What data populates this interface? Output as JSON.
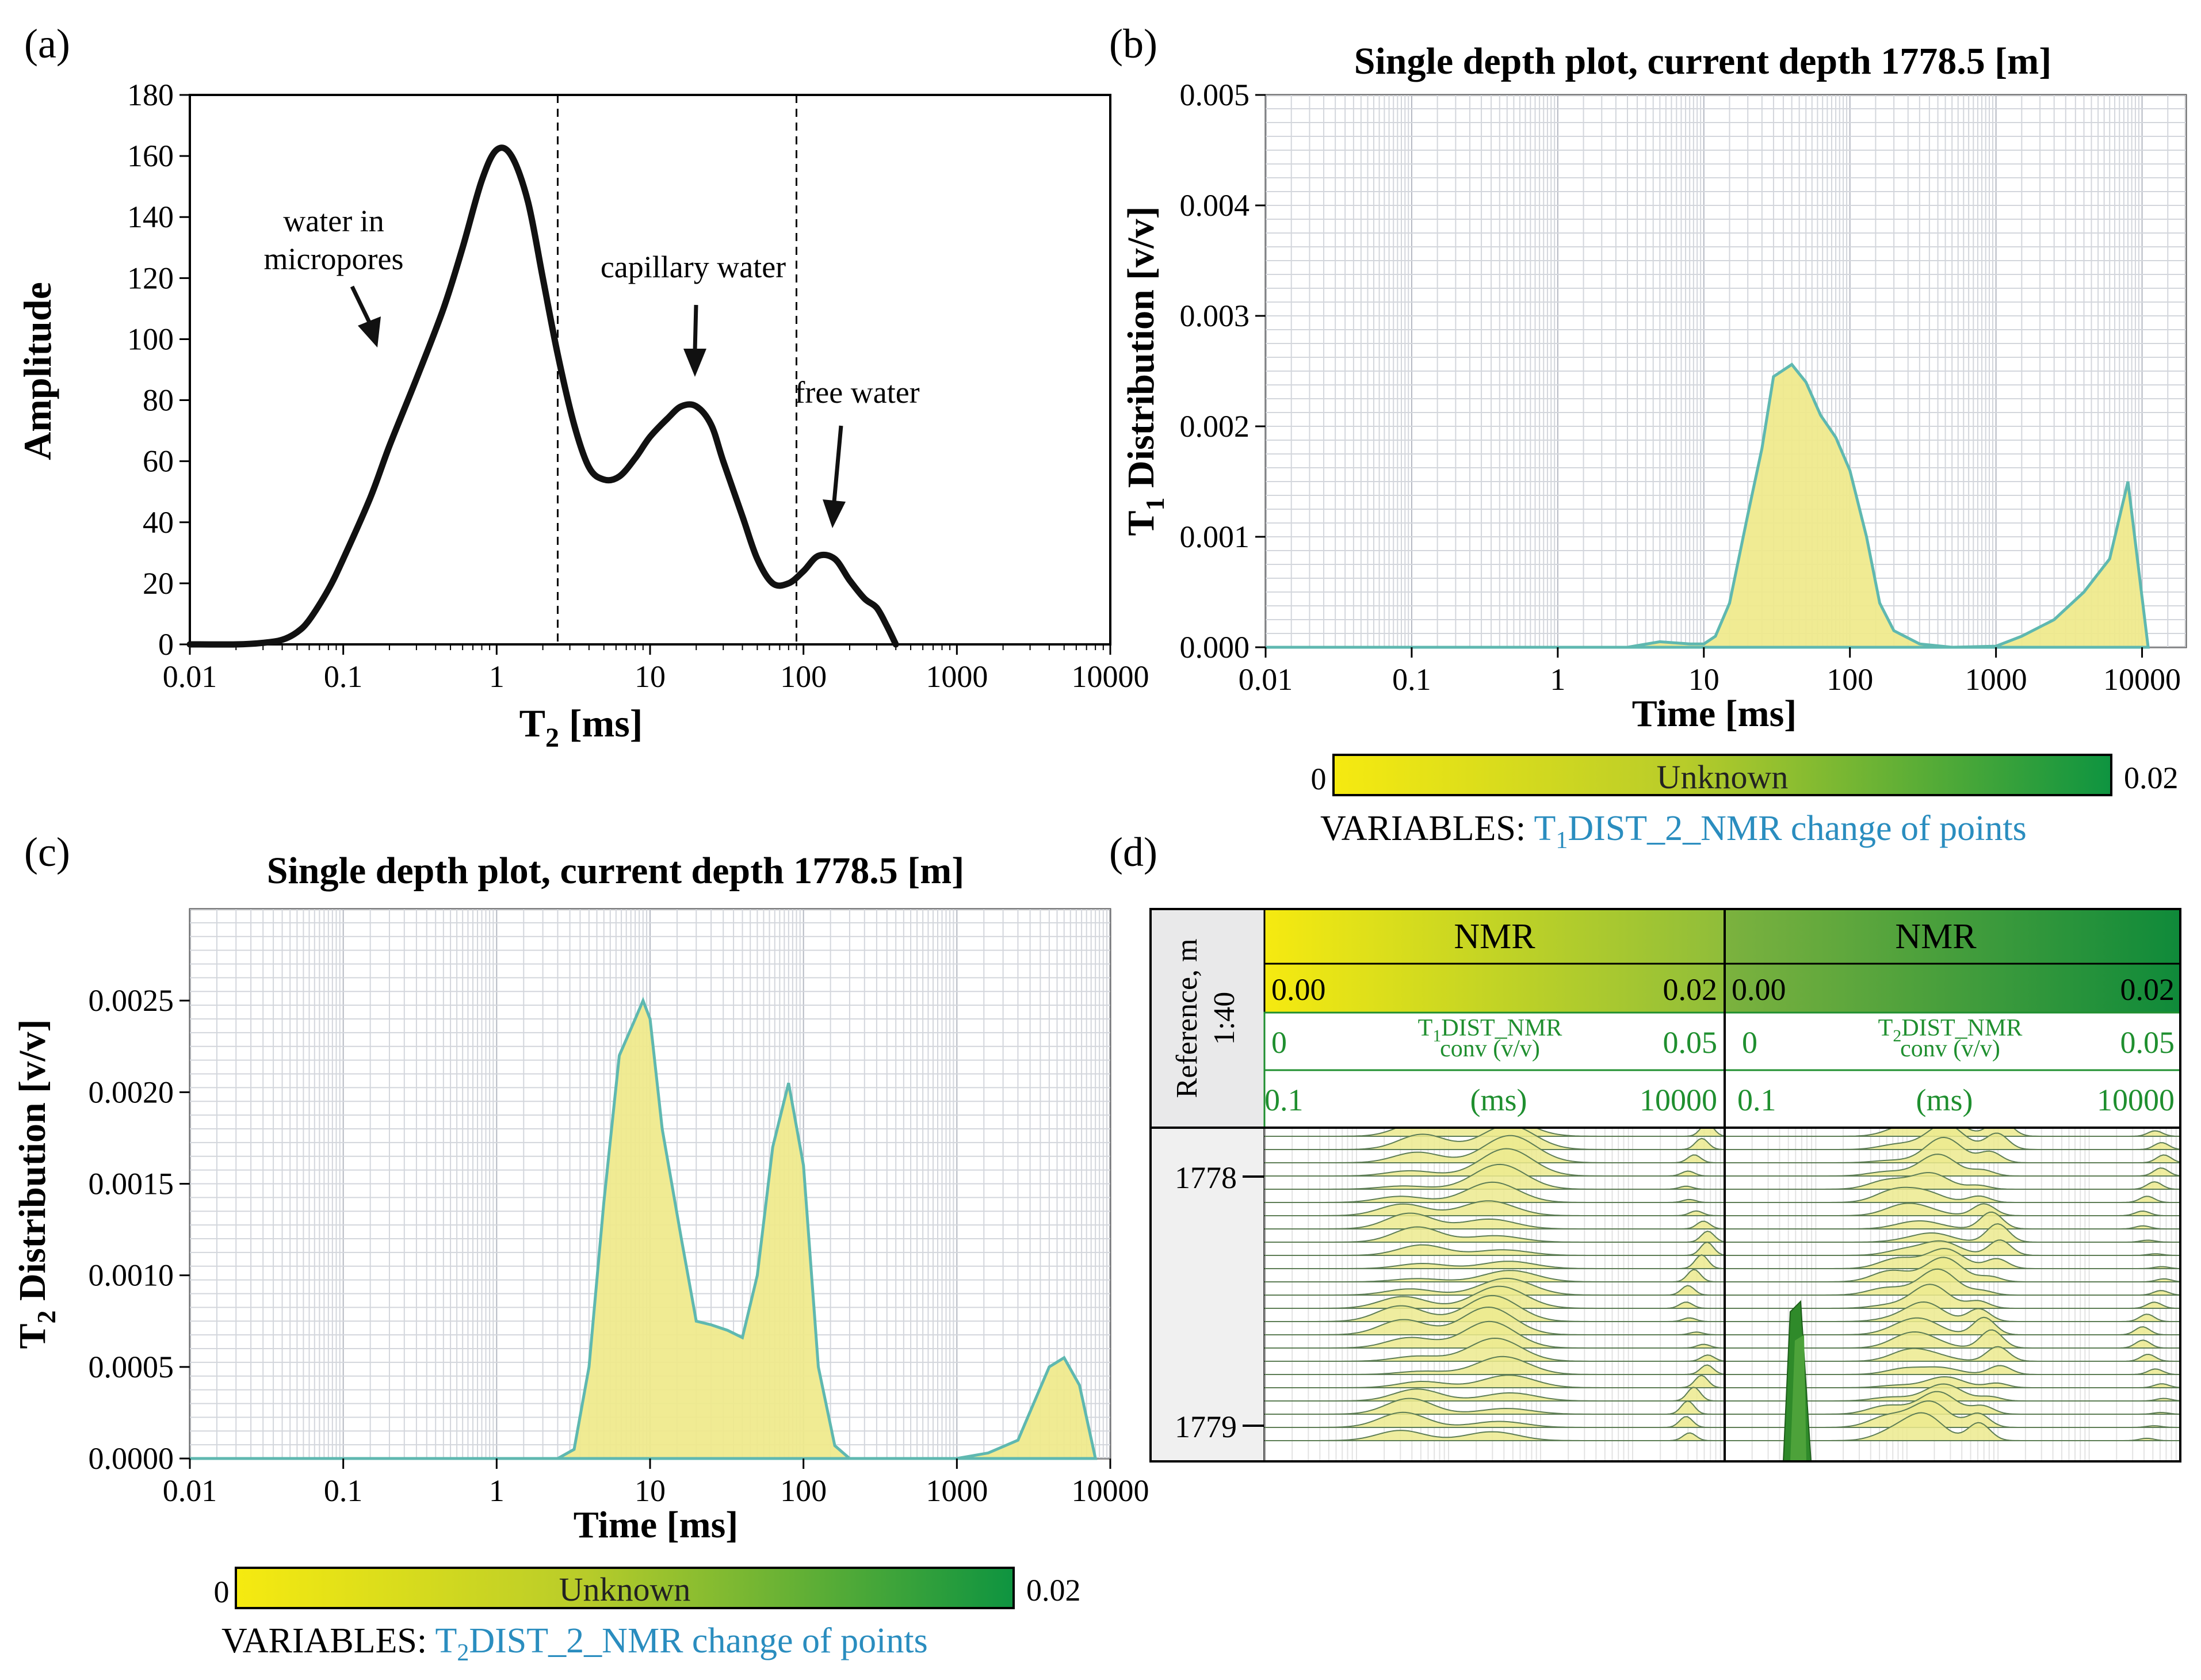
{
  "panels": {
    "a": {
      "label": "(a)",
      "ylabel": "Amplitude",
      "xlabel_main": "T",
      "xlabel_sub": "2",
      "xlabel_rest": " [ms]",
      "annotations": {
        "micropores_line1": "water in",
        "micropores_line2": "micropores",
        "capillary": "capillary water",
        "free": "free water"
      }
    },
    "b": {
      "label": "(b)",
      "title": "Single depth plot, current depth 1778.5 [m]",
      "ylabel_main": "T",
      "ylabel_sub": "1",
      "ylabel_rest": " Distribution [v/v]",
      "xlabel": "Time [ms]",
      "colorbar": {
        "min": "0",
        "max": "0.02",
        "label": "Unknown"
      },
      "variables_prefix": "VARIABLES: ",
      "variables_main": "T",
      "variables_sub": "1",
      "variables_rest": "DIST_2_NMR change of points"
    },
    "c": {
      "label": "(c)",
      "title": "Single depth plot, current depth 1778.5  [m]",
      "ylabel_main": "T",
      "ylabel_sub": "2",
      "ylabel_rest": " Distribution [v/v]",
      "xlabel": "Time [ms]",
      "colorbar": {
        "min": "0",
        "max": "0.02",
        "label": "Unknown"
      },
      "variables_prefix": "VARIABLES: ",
      "variables_main": "T",
      "variables_sub": "2",
      "variables_rest": "DIST_2_NMR change of points"
    },
    "d": {
      "label": "(d)",
      "reference_line1": "Reference, m",
      "reference_line2": "1:40",
      "depth_ticks": [
        "1778",
        "1779"
      ],
      "track1": {
        "title": "NMR",
        "scale_min": "0.00",
        "scale_max": "0.02",
        "curve_left": "0",
        "curve_right": "0.05",
        "curve_main": "T",
        "curve_sub": "1",
        "curve_rest": "DIST_NMR",
        "curve_line2": "conv (v/v)",
        "time_left": "0.1",
        "time_unit": "(ms)",
        "time_right": "10000"
      },
      "track2": {
        "title": "NMR",
        "scale_min": "0.00",
        "scale_max": "0.02",
        "curve_left": "0",
        "curve_right": "0.05",
        "curve_main": "T",
        "curve_sub": "2",
        "curve_rest": "DIST_NMR",
        "curve_line2": "conv (v/v)",
        "time_left": "0.1",
        "time_unit": "(ms)",
        "time_right": "10000"
      }
    }
  },
  "colors": {
    "yellow": "#f4e515",
    "fill": "#efe98a",
    "edge": "#5fb8b0",
    "green": "#1b9a3c",
    "grid": "#c9ccd4",
    "teal_text": "#2a8dbf",
    "track_green": "#1f8f2f"
  },
  "chart_data": [
    {
      "panel": "a",
      "type": "line",
      "x_scale": "log",
      "xlim": [
        0.01,
        10000
      ],
      "ylim": [
        0,
        180
      ],
      "xticks": [
        "0.01",
        "0.1",
        "1",
        "10",
        "100",
        "1000",
        "10000"
      ],
      "yticks": [
        "0",
        "20",
        "40",
        "60",
        "80",
        "100",
        "120",
        "140",
        "160",
        "180"
      ],
      "grid": false,
      "vlines": [
        2.5,
        90
      ],
      "x": [
        0.01,
        0.02,
        0.03,
        0.04,
        0.05,
        0.06,
        0.08,
        0.1,
        0.15,
        0.2,
        0.3,
        0.45,
        0.6,
        0.8,
        1.0,
        1.25,
        1.6,
        2.0,
        2.5,
        3.2,
        4.0,
        5.0,
        6.3,
        8.0,
        10,
        13,
        16,
        20,
        25,
        30,
        40,
        50,
        63,
        80,
        100,
        125,
        160,
        200,
        250,
        300,
        350,
        400
      ],
      "y": [
        0,
        0,
        0.5,
        1.5,
        4,
        8,
        18,
        28,
        48,
        65,
        87,
        110,
        130,
        152,
        162,
        160,
        145,
        120,
        95,
        72,
        58,
        54,
        55,
        61,
        68,
        74,
        78,
        78,
        72,
        60,
        42,
        28,
        20,
        20,
        24,
        29,
        28,
        21,
        15,
        12,
        6,
        0
      ]
    },
    {
      "panel": "b",
      "type": "area",
      "x_scale": "log",
      "xlim": [
        0.01,
        20000
      ],
      "ylim": [
        0,
        0.005
      ],
      "xticks": [
        "0.01",
        "0.1",
        "1",
        "10",
        "100",
        "1000",
        "10000"
      ],
      "yticks": [
        "0.000",
        "0.001",
        "0.002",
        "0.003",
        "0.004",
        "0.005"
      ],
      "grid": true,
      "x": [
        0.01,
        3,
        5,
        8,
        10,
        12,
        15,
        20,
        25,
        30,
        40,
        50,
        63,
        80,
        100,
        130,
        160,
        200,
        300,
        500,
        1000,
        1500,
        2500,
        4000,
        6000,
        8000,
        11000
      ],
      "y": [
        0,
        0,
        5e-05,
        3e-05,
        3e-05,
        0.0001,
        0.0004,
        0.0012,
        0.0018,
        0.00245,
        0.00256,
        0.0024,
        0.0021,
        0.0019,
        0.0016,
        0.001,
        0.0004,
        0.00015,
        3e-05,
        0,
        1e-05,
        0.0001,
        0.00025,
        0.0005,
        0.0008,
        0.0015,
        0
      ]
    },
    {
      "panel": "c",
      "type": "area",
      "x_scale": "log",
      "xlim": [
        0.01,
        10000
      ],
      "ylim": [
        0,
        0.003
      ],
      "xticks": [
        "0.01",
        "0.1",
        "1",
        "10",
        "100",
        "1000",
        "10000"
      ],
      "yticks": [
        "0.0000",
        "0.0005",
        "0.0010",
        "0.0015",
        "0.0020",
        "0.0025"
      ],
      "grid": true,
      "x": [
        0.01,
        2.5,
        3.2,
        4,
        5,
        6.3,
        8,
        9,
        10,
        12,
        16,
        20,
        25,
        32,
        40,
        50,
        63,
        80,
        100,
        125,
        160,
        200,
        1000,
        1600,
        2500,
        4000,
        5000,
        6300,
        8000
      ],
      "y": [
        0,
        0,
        5e-05,
        0.0005,
        0.0014,
        0.0022,
        0.0024,
        0.0025,
        0.0024,
        0.0018,
        0.0012,
        0.00075,
        0.00073,
        0.0007,
        0.00066,
        0.001,
        0.0017,
        0.00205,
        0.0016,
        0.0005,
        7e-05,
        0,
        0,
        3e-05,
        0.0001,
        0.0005,
        0.00055,
        0.0004,
        0
      ]
    }
  ]
}
